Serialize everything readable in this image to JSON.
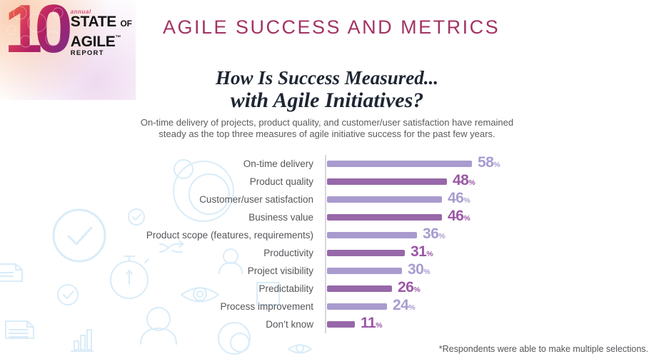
{
  "header": {
    "logo": {
      "number": "10",
      "annual": "annual",
      "state": "STATE",
      "of": "OF",
      "agile": "AGILE",
      "trademark": "™",
      "report": "REPORT"
    },
    "title": "AGILE SUCCESS AND METRICS"
  },
  "intro": {
    "title_line1": "How Is Success Measured...",
    "title_line2": "with Agile Initiatives?",
    "subtitle_line1": "On-time delivery of projects, product quality, and customer/user satisfaction have remained",
    "subtitle_line2": "steady as the top three measures of agile initiative success for the past few years."
  },
  "chart_data": {
    "type": "bar",
    "orientation": "horizontal",
    "title": "How Is Success Measured... with Agile Initiatives?",
    "unit": "%",
    "categories": [
      "On-time delivery",
      "Product quality",
      "Customer/user satisfaction",
      "Business value",
      "Product scope (features, requirements)",
      "Productivity",
      "Project visibility",
      "Predictability",
      "Process improvement",
      "Don’t know"
    ],
    "values": [
      58,
      48,
      46,
      46,
      36,
      31,
      30,
      26,
      24,
      11
    ],
    "xlim": [
      0,
      60
    ],
    "grid": false,
    "legend": "none",
    "value_labels_shown": true,
    "bar_colors_alternating": [
      "#a99bce",
      "#9768a9"
    ],
    "value_text_colors_alternating": [
      "#a89cd0",
      "#9c57a6"
    ],
    "axis_line_color": "#d9d6dc",
    "decor_icon_names": [
      "bubbles-icon",
      "check-circle-icon",
      "document-icon",
      "stopwatch-icon",
      "bar-chart-icon",
      "shuffle-arrows-icon",
      "person-icon",
      "eye-icon",
      "square-icon"
    ],
    "decor_icon_color": "#d9ecf8"
  },
  "footnote": "*Respondents were able to make multiple selections."
}
